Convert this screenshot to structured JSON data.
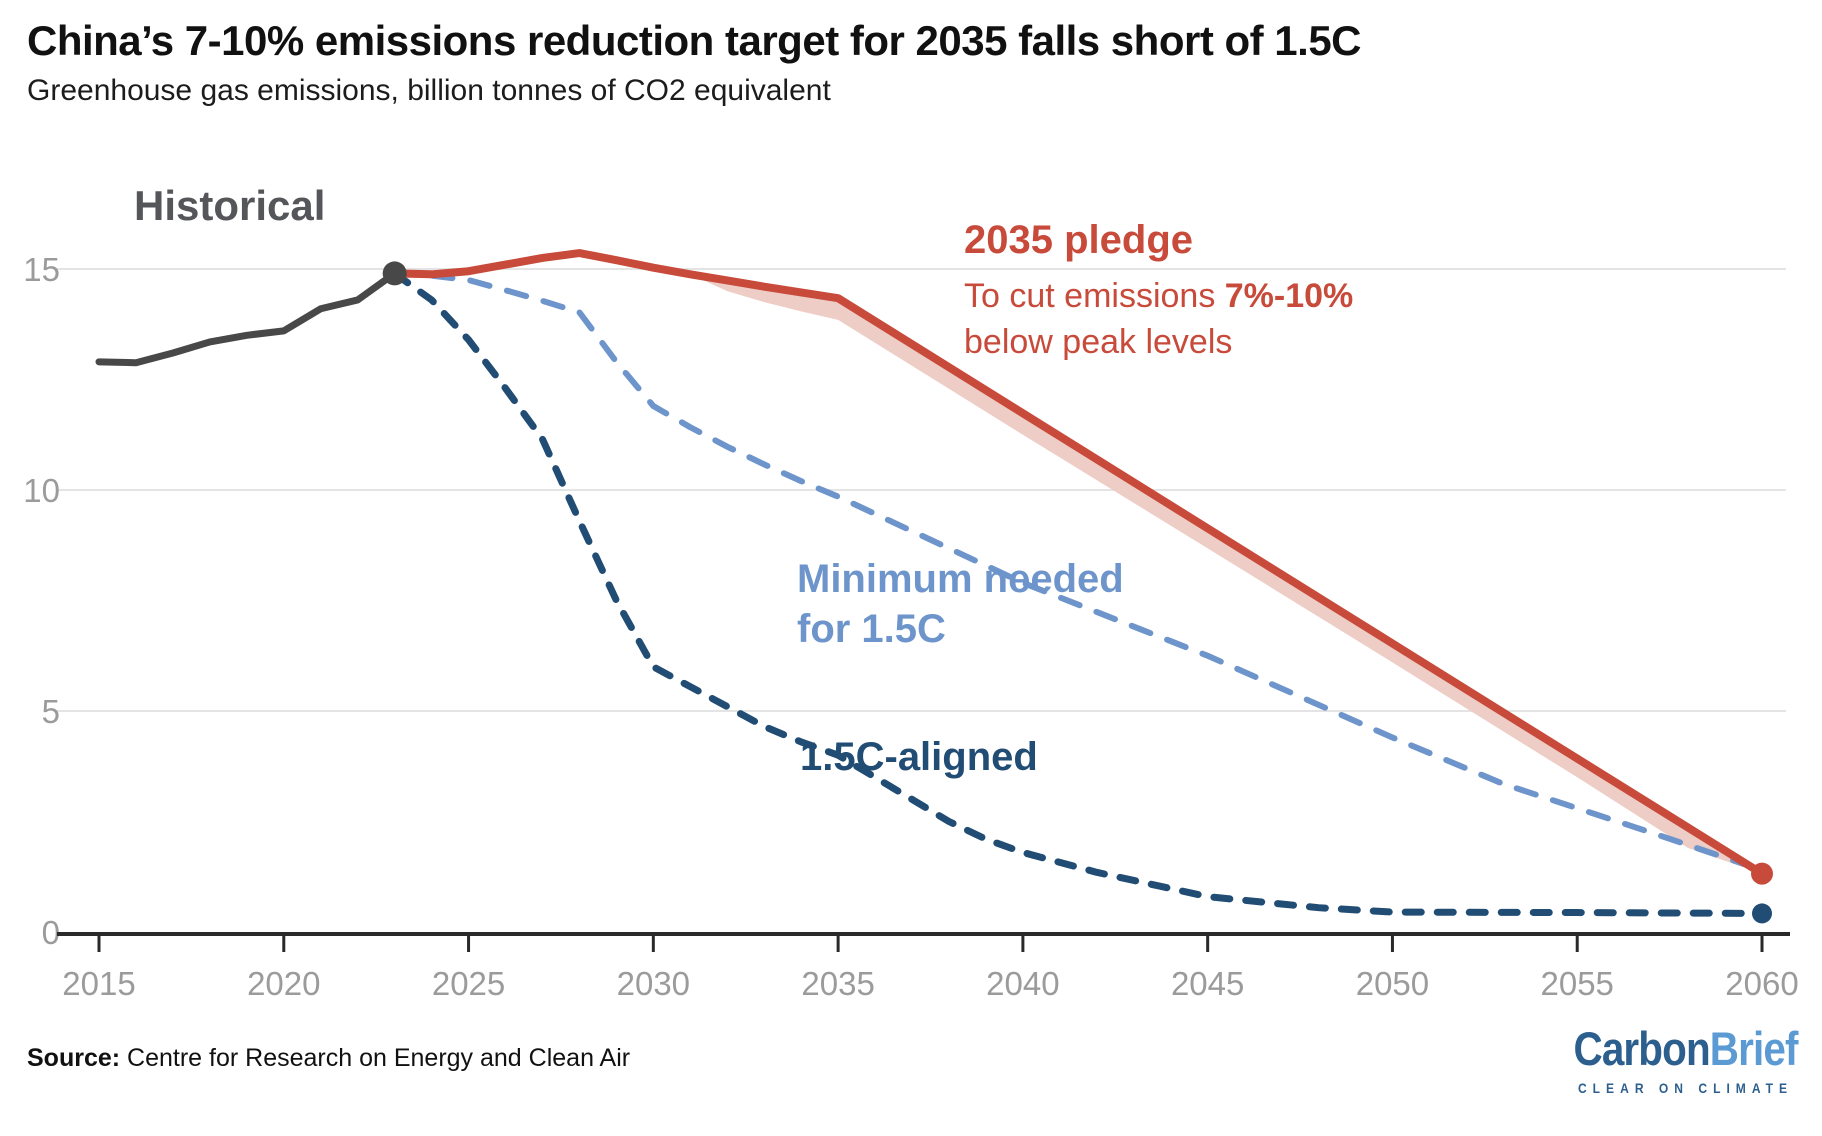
{
  "header": {
    "title": "China’s 7-10% emissions reduction target for 2035 falls short of 1.5C",
    "subtitle": "Greenhouse gas emissions, billion tonnes of CO2 equivalent"
  },
  "annotations": {
    "historical": {
      "text": "Historical",
      "color": "#55565a"
    },
    "pledge": {
      "title": "2035 pledge",
      "line1_pre": "To cut emissions ",
      "line1_bold": "7%-10%",
      "line2": "below peak levels",
      "color": "#c84a3a"
    },
    "minimum": {
      "line1": "Minimum needed",
      "line2": "for 1.5C",
      "color": "#6e95cb"
    },
    "aligned": {
      "text": "1.5C-aligned",
      "color": "#214c74"
    }
  },
  "footer": {
    "source_label": "Source:",
    "source_text": " Centre for Research on Energy and Clean Air",
    "logo_part1": "Carbon",
    "logo_part2": "Brief",
    "logo_tagline": "CLEAR ON CLIMATE"
  },
  "colors": {
    "historical_gray": "#484848",
    "pledge_red": "#c84a3a",
    "band_pink": "#eecdc6",
    "minimum_blue": "#6e95cb",
    "aligned_navy": "#214c74",
    "axis_label_gray": "#9b9b9b",
    "gridline_gray": "#e4e4e4",
    "axis_black": "#2a2a2a"
  },
  "chart_data": {
    "type": "line",
    "title": "China’s 7-10% emissions reduction target for 2035 falls short of 1.5C",
    "ylabel": "Greenhouse gas emissions, billion tonnes of CO2 equivalent",
    "xlim": [
      2015,
      2060
    ],
    "ylim": [
      0,
      16
    ],
    "grid": "horizontal",
    "x_ticks": [
      2015,
      2020,
      2025,
      2030,
      2035,
      2040,
      2045,
      2050,
      2055,
      2060
    ],
    "y_ticks": [
      0,
      5,
      10,
      15
    ],
    "band": {
      "name": "7%-10% reduction range",
      "color": "#eecdc6",
      "upper": [
        [
          2031,
          14.88
        ],
        [
          2032,
          14.74
        ],
        [
          2033,
          14.6
        ],
        [
          2034,
          14.47
        ],
        [
          2035,
          14.34
        ],
        [
          2060,
          1.32
        ]
      ],
      "lower": [
        [
          2031,
          14.88
        ],
        [
          2032,
          14.5
        ],
        [
          2033,
          14.25
        ],
        [
          2034,
          14.04
        ],
        [
          2035,
          13.85
        ],
        [
          2040,
          11.25
        ],
        [
          2045,
          8.68
        ],
        [
          2050,
          6.1
        ],
        [
          2055,
          3.5
        ],
        [
          2058,
          1.9
        ],
        [
          2060,
          1.32
        ]
      ]
    },
    "series": [
      {
        "id": "minimum-1-5c",
        "name": "Minimum needed for 1.5C",
        "z": 1,
        "color": "#6e95cb",
        "style": "dashed",
        "dash": "20 18",
        "width": 6,
        "end_dot": false,
        "points": [
          [
            2023,
            14.9
          ],
          [
            2024,
            14.85
          ],
          [
            2025,
            14.75
          ],
          [
            2026,
            14.52
          ],
          [
            2027,
            14.28
          ],
          [
            2028,
            14.02
          ],
          [
            2029,
            12.9
          ],
          [
            2030,
            11.9
          ],
          [
            2031,
            11.42
          ],
          [
            2032,
            10.98
          ],
          [
            2033,
            10.58
          ],
          [
            2034,
            10.2
          ],
          [
            2035,
            9.85
          ],
          [
            2040,
            7.9
          ],
          [
            2045,
            6.25
          ],
          [
            2050,
            4.4
          ],
          [
            2053,
            3.35
          ],
          [
            2055,
            2.8
          ],
          [
            2057,
            2.25
          ],
          [
            2060,
            1.4
          ]
        ]
      },
      {
        "id": "1-5c-aligned",
        "name": "1.5C-aligned",
        "z": 2,
        "color": "#214c74",
        "style": "dashed",
        "dash": "16 16",
        "width": 7,
        "end_dot": true,
        "dot_radius": 10,
        "points": [
          [
            2023,
            14.9
          ],
          [
            2024,
            14.3
          ],
          [
            2025,
            13.4
          ],
          [
            2026,
            12.3
          ],
          [
            2027,
            11.15
          ],
          [
            2028,
            9.3
          ],
          [
            2029,
            7.5
          ],
          [
            2030,
            6.0
          ],
          [
            2031,
            5.55
          ],
          [
            2032,
            5.1
          ],
          [
            2033,
            4.65
          ],
          [
            2034,
            4.3
          ],
          [
            2035,
            4.0
          ],
          [
            2036,
            3.5
          ],
          [
            2037,
            3.0
          ],
          [
            2038,
            2.5
          ],
          [
            2039,
            2.1
          ],
          [
            2040,
            1.8
          ],
          [
            2042,
            1.35
          ],
          [
            2045,
            0.8
          ],
          [
            2048,
            0.55
          ],
          [
            2050,
            0.45
          ],
          [
            2055,
            0.44
          ],
          [
            2060,
            0.42
          ]
        ]
      },
      {
        "id": "pledge-2035",
        "name": "2035 pledge",
        "z": 3,
        "color": "#c84a3a",
        "style": "solid",
        "width": 8,
        "end_dot": true,
        "dot_radius": 11,
        "points": [
          [
            2023,
            14.9
          ],
          [
            2024,
            14.88
          ],
          [
            2025,
            14.95
          ],
          [
            2026,
            15.1
          ],
          [
            2027,
            15.25
          ],
          [
            2028,
            15.36
          ],
          [
            2029,
            15.2
          ],
          [
            2030,
            15.03
          ],
          [
            2031,
            14.88
          ],
          [
            2032,
            14.74
          ],
          [
            2033,
            14.6
          ],
          [
            2034,
            14.47
          ],
          [
            2035,
            14.34
          ],
          [
            2060,
            1.32
          ]
        ]
      },
      {
        "id": "historical",
        "name": "Historical",
        "z": 4,
        "color": "#484848",
        "style": "solid",
        "width": 7,
        "end_dot": true,
        "dot_radius": 12,
        "points": [
          [
            2015,
            12.9
          ],
          [
            2016,
            12.88
          ],
          [
            2017,
            13.1
          ],
          [
            2018,
            13.35
          ],
          [
            2019,
            13.5
          ],
          [
            2020,
            13.6
          ],
          [
            2021,
            14.1
          ],
          [
            2022,
            14.3
          ],
          [
            2023,
            14.9
          ]
        ]
      }
    ]
  }
}
